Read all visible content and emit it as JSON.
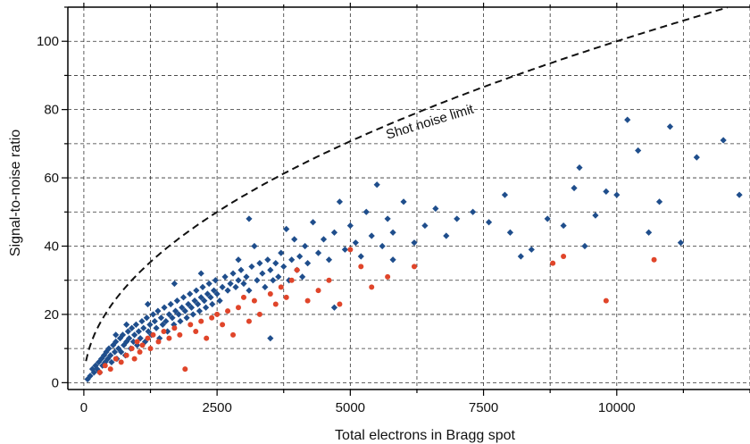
{
  "chart_data": {
    "type": "scatter",
    "title": "",
    "xlabel": "Total electrons in Bragg spot",
    "ylabel": "Signal-to-noise ratio",
    "xlim": [
      -300,
      12500
    ],
    "ylim": [
      -2,
      110
    ],
    "xticks": [
      0,
      2500,
      5000,
      7500,
      10000
    ],
    "xtick_labels": [
      "0",
      "2500",
      "5000",
      "7500",
      "10000"
    ],
    "yticks": [
      0,
      20,
      40,
      60,
      80,
      100
    ],
    "ytick_labels": [
      "0",
      "20",
      "40",
      "60",
      "80",
      "100"
    ],
    "grid": true,
    "grid_style": "dashed",
    "annotation": "Shot noise limit",
    "reference_curve": {
      "name": "Shot noise limit",
      "formula": "sqrt(x)",
      "color": "#111111",
      "style": "dashed"
    },
    "colors": {
      "blue": "#1f4e8c",
      "red": "#e0452a"
    },
    "series": [
      {
        "color": "blue",
        "marker": "diamond",
        "points": [
          [
            70,
            1
          ],
          [
            120,
            2
          ],
          [
            160,
            4
          ],
          [
            190,
            3
          ],
          [
            220,
            5
          ],
          [
            250,
            4
          ],
          [
            280,
            6
          ],
          [
            300,
            3
          ],
          [
            330,
            7
          ],
          [
            350,
            5
          ],
          [
            380,
            8
          ],
          [
            400,
            6
          ],
          [
            420,
            9
          ],
          [
            450,
            7
          ],
          [
            470,
            10
          ],
          [
            500,
            8
          ],
          [
            520,
            6
          ],
          [
            550,
            11
          ],
          [
            580,
            9
          ],
          [
            600,
            12
          ],
          [
            620,
            7
          ],
          [
            650,
            10
          ],
          [
            680,
            13
          ],
          [
            700,
            9
          ],
          [
            730,
            14
          ],
          [
            750,
            11
          ],
          [
            780,
            8
          ],
          [
            800,
            12
          ],
          [
            830,
            15
          ],
          [
            850,
            13
          ],
          [
            880,
            10
          ],
          [
            900,
            16
          ],
          [
            930,
            12
          ],
          [
            950,
            14
          ],
          [
            980,
            17
          ],
          [
            1000,
            11
          ],
          [
            1030,
            15
          ],
          [
            1060,
            13
          ],
          [
            1090,
            18
          ],
          [
            1120,
            16
          ],
          [
            1150,
            12
          ],
          [
            1180,
            19
          ],
          [
            1210,
            15
          ],
          [
            1240,
            17
          ],
          [
            1270,
            14
          ],
          [
            1300,
            20
          ],
          [
            1330,
            18
          ],
          [
            1360,
            16
          ],
          [
            1390,
            21
          ],
          [
            1420,
            13
          ],
          [
            1450,
            19
          ],
          [
            1480,
            17
          ],
          [
            1510,
            22
          ],
          [
            1540,
            18
          ],
          [
            1570,
            15
          ],
          [
            1600,
            20
          ],
          [
            1630,
            23
          ],
          [
            1660,
            19
          ],
          [
            1690,
            17
          ],
          [
            1720,
            21
          ],
          [
            1750,
            24
          ],
          [
            1780,
            20
          ],
          [
            1810,
            18
          ],
          [
            1840,
            22
          ],
          [
            1870,
            25
          ],
          [
            1900,
            21
          ],
          [
            1930,
            19
          ],
          [
            1960,
            23
          ],
          [
            1990,
            26
          ],
          [
            2020,
            22
          ],
          [
            2050,
            20
          ],
          [
            2080,
            24
          ],
          [
            2110,
            27
          ],
          [
            2140,
            23
          ],
          [
            2170,
            21
          ],
          [
            2200,
            25
          ],
          [
            2230,
            28
          ],
          [
            2260,
            24
          ],
          [
            2290,
            22
          ],
          [
            2320,
            26
          ],
          [
            2350,
            29
          ],
          [
            2380,
            25
          ],
          [
            2410,
            23
          ],
          [
            2440,
            27
          ],
          [
            2470,
            30
          ],
          [
            2500,
            26
          ],
          [
            2550,
            24
          ],
          [
            2600,
            28
          ],
          [
            2650,
            31
          ],
          [
            2700,
            27
          ],
          [
            2750,
            29
          ],
          [
            2800,
            32
          ],
          [
            2850,
            28
          ],
          [
            2900,
            30
          ],
          [
            2950,
            33
          ],
          [
            3000,
            29
          ],
          [
            3050,
            31
          ],
          [
            3100,
            27
          ],
          [
            3150,
            34
          ],
          [
            3200,
            40
          ],
          [
            3250,
            30
          ],
          [
            3300,
            35
          ],
          [
            3350,
            32
          ],
          [
            3400,
            28
          ],
          [
            3450,
            36
          ],
          [
            3500,
            33
          ],
          [
            3550,
            30
          ],
          [
            3600,
            35
          ],
          [
            3650,
            31
          ],
          [
            3700,
            38
          ],
          [
            3750,
            34
          ],
          [
            3800,
            45
          ],
          [
            3850,
            30
          ],
          [
            3900,
            36
          ],
          [
            3950,
            42
          ],
          [
            4000,
            33
          ],
          [
            4050,
            37
          ],
          [
            4100,
            31
          ],
          [
            4150,
            40
          ],
          [
            4200,
            35
          ],
          [
            4300,
            47
          ],
          [
            4400,
            38
          ],
          [
            4500,
            42
          ],
          [
            4600,
            36
          ],
          [
            4700,
            44
          ],
          [
            4800,
            53
          ],
          [
            4900,
            39
          ],
          [
            5000,
            46
          ],
          [
            5100,
            41
          ],
          [
            5200,
            37
          ],
          [
            5300,
            50
          ],
          [
            5400,
            43
          ],
          [
            5500,
            58
          ],
          [
            5600,
            40
          ],
          [
            5700,
            48
          ],
          [
            5800,
            44
          ],
          [
            6000,
            53
          ],
          [
            6200,
            41
          ],
          [
            6400,
            46
          ],
          [
            6600,
            51
          ],
          [
            6800,
            43
          ],
          [
            7000,
            48
          ],
          [
            7300,
            50
          ],
          [
            7600,
            47
          ],
          [
            7900,
            55
          ],
          [
            8000,
            44
          ],
          [
            8200,
            37
          ],
          [
            8400,
            39
          ],
          [
            8700,
            48
          ],
          [
            9000,
            46
          ],
          [
            9200,
            57
          ],
          [
            9300,
            63
          ],
          [
            9400,
            40
          ],
          [
            9600,
            49
          ],
          [
            9800,
            56
          ],
          [
            10000,
            55
          ],
          [
            10200,
            77
          ],
          [
            10400,
            68
          ],
          [
            10600,
            44
          ],
          [
            10800,
            53
          ],
          [
            11000,
            75
          ],
          [
            11200,
            41
          ],
          [
            11500,
            66
          ],
          [
            12000,
            71
          ],
          [
            12300,
            55
          ],
          [
            3100,
            48
          ],
          [
            2900,
            36
          ],
          [
            2200,
            32
          ],
          [
            1700,
            29
          ],
          [
            1200,
            23
          ],
          [
            800,
            17
          ],
          [
            600,
            14
          ],
          [
            3500,
            13
          ],
          [
            4700,
            22
          ],
          [
            5800,
            36
          ]
        ]
      },
      {
        "color": "red",
        "marker": "circle",
        "points": [
          [
            300,
            3
          ],
          [
            400,
            5
          ],
          [
            500,
            4
          ],
          [
            600,
            7
          ],
          [
            700,
            6
          ],
          [
            800,
            8
          ],
          [
            900,
            10
          ],
          [
            950,
            7
          ],
          [
            1000,
            12
          ],
          [
            1050,
            9
          ],
          [
            1100,
            11
          ],
          [
            1200,
            13
          ],
          [
            1250,
            10
          ],
          [
            1300,
            14
          ],
          [
            1400,
            12
          ],
          [
            1500,
            15
          ],
          [
            1600,
            13
          ],
          [
            1700,
            16
          ],
          [
            1800,
            14
          ],
          [
            1900,
            4
          ],
          [
            2000,
            17
          ],
          [
            2100,
            15
          ],
          [
            2200,
            18
          ],
          [
            2300,
            13
          ],
          [
            2400,
            19
          ],
          [
            2500,
            20
          ],
          [
            2600,
            17
          ],
          [
            2700,
            21
          ],
          [
            2800,
            14
          ],
          [
            2900,
            22
          ],
          [
            3000,
            25
          ],
          [
            3100,
            18
          ],
          [
            3200,
            24
          ],
          [
            3300,
            20
          ],
          [
            3500,
            26
          ],
          [
            3600,
            23
          ],
          [
            3700,
            28
          ],
          [
            3800,
            25
          ],
          [
            3900,
            30
          ],
          [
            4000,
            33
          ],
          [
            4200,
            24
          ],
          [
            4400,
            27
          ],
          [
            4600,
            30
          ],
          [
            4800,
            23
          ],
          [
            5000,
            39
          ],
          [
            5200,
            34
          ],
          [
            5400,
            28
          ],
          [
            5700,
            31
          ],
          [
            6200,
            34
          ],
          [
            8800,
            35
          ],
          [
            9000,
            37
          ],
          [
            9800,
            24
          ],
          [
            10700,
            36
          ]
        ]
      }
    ]
  }
}
